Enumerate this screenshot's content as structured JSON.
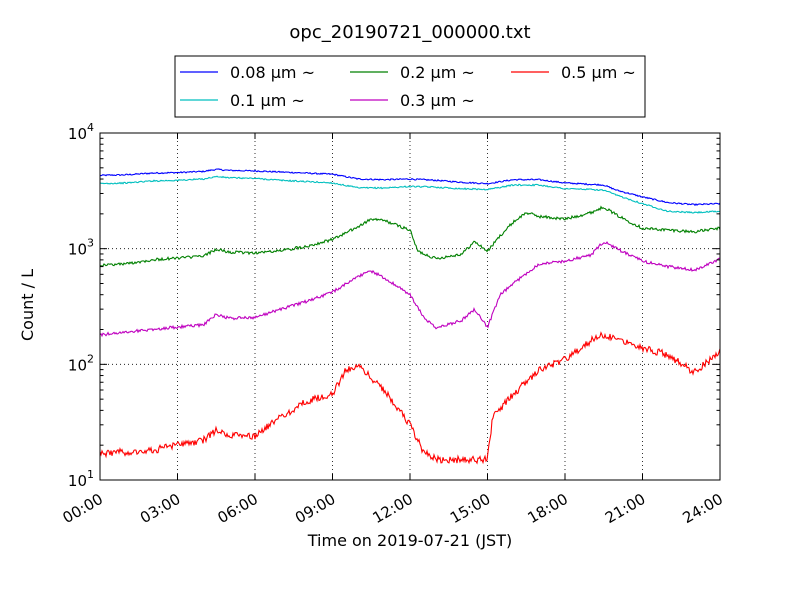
{
  "chart_data": {
    "type": "line",
    "title": "opc_20190721_000000.txt",
    "xlabel": "Time on 2019-07-21 (JST)",
    "ylabel": "Count / L",
    "x_unit": "hours",
    "xlim": [
      0,
      24
    ],
    "ylim": [
      10,
      10000
    ],
    "yscale": "log",
    "grid": true,
    "legend_position": "top-center, above plot",
    "x_ticks": [
      {
        "value": 0,
        "label": "00:00"
      },
      {
        "value": 3,
        "label": "03:00"
      },
      {
        "value": 6,
        "label": "06:00"
      },
      {
        "value": 9,
        "label": "09:00"
      },
      {
        "value": 12,
        "label": "12:00"
      },
      {
        "value": 15,
        "label": "15:00"
      },
      {
        "value": 18,
        "label": "18:00"
      },
      {
        "value": 21,
        "label": "21:00"
      },
      {
        "value": 24,
        "label": "24:00"
      }
    ],
    "y_ticks": [
      {
        "value": 10,
        "base": "10",
        "exp": "1"
      },
      {
        "value": 100,
        "base": "10",
        "exp": "2"
      },
      {
        "value": 1000,
        "base": "10",
        "exp": "3"
      },
      {
        "value": 10000,
        "base": "10",
        "exp": "4"
      }
    ],
    "series": [
      {
        "name": "0.08 μm ~",
        "color": "#0000ff",
        "points": [
          [
            0,
            4300
          ],
          [
            1,
            4350
          ],
          [
            2,
            4500
          ],
          [
            3,
            4550
          ],
          [
            4,
            4650
          ],
          [
            4.5,
            4850
          ],
          [
            5,
            4750
          ],
          [
            6,
            4700
          ],
          [
            7,
            4600
          ],
          [
            8,
            4500
          ],
          [
            9,
            4400
          ],
          [
            10,
            4000
          ],
          [
            11,
            3950
          ],
          [
            12,
            4000
          ],
          [
            13,
            3900
          ],
          [
            14,
            3750
          ],
          [
            15,
            3650
          ],
          [
            16,
            3950
          ],
          [
            17,
            3950
          ],
          [
            18,
            3700
          ],
          [
            19,
            3600
          ],
          [
            19.5,
            3550
          ],
          [
            20,
            3200
          ],
          [
            21,
            2800
          ],
          [
            22,
            2500
          ],
          [
            23,
            2400
          ],
          [
            24,
            2450
          ]
        ]
      },
      {
        "name": "0.1 μm ~",
        "color": "#00bfbf",
        "points": [
          [
            0,
            3650
          ],
          [
            1,
            3700
          ],
          [
            2,
            3850
          ],
          [
            3,
            3900
          ],
          [
            4,
            4000
          ],
          [
            4.5,
            4200
          ],
          [
            5,
            4100
          ],
          [
            6,
            4050
          ],
          [
            7,
            3900
          ],
          [
            8,
            3800
          ],
          [
            9,
            3700
          ],
          [
            10,
            3350
          ],
          [
            11,
            3350
          ],
          [
            12,
            3450
          ],
          [
            13,
            3400
          ],
          [
            14,
            3300
          ],
          [
            15,
            3250
          ],
          [
            16,
            3550
          ],
          [
            17,
            3550
          ],
          [
            18,
            3300
          ],
          [
            19,
            3250
          ],
          [
            19.5,
            3200
          ],
          [
            20,
            2900
          ],
          [
            21,
            2450
          ],
          [
            22,
            2100
          ],
          [
            23,
            2050
          ],
          [
            24,
            2100
          ]
        ]
      },
      {
        "name": "0.2 μm ~",
        "color": "#008000",
        "points": [
          [
            0,
            720
          ],
          [
            1,
            740
          ],
          [
            2,
            800
          ],
          [
            3,
            830
          ],
          [
            4,
            860
          ],
          [
            4.5,
            990
          ],
          [
            5,
            930
          ],
          [
            6,
            920
          ],
          [
            7,
            960
          ],
          [
            8,
            1050
          ],
          [
            9,
            1200
          ],
          [
            10,
            1550
          ],
          [
            10.5,
            1800
          ],
          [
            11,
            1750
          ],
          [
            12,
            1450
          ],
          [
            12.3,
            950
          ],
          [
            13,
            820
          ],
          [
            14,
            900
          ],
          [
            14.5,
            1150
          ],
          [
            15,
            950
          ],
          [
            15.5,
            1300
          ],
          [
            16,
            1700
          ],
          [
            16.5,
            2050
          ],
          [
            17,
            1900
          ],
          [
            18,
            1800
          ],
          [
            19,
            2050
          ],
          [
            19.5,
            2300
          ],
          [
            20,
            1950
          ],
          [
            21,
            1500
          ],
          [
            22,
            1450
          ],
          [
            23,
            1400
          ],
          [
            24,
            1500
          ]
        ]
      },
      {
        "name": "0.3 μm ~",
        "color": "#bf00bf",
        "points": [
          [
            0,
            180
          ],
          [
            1,
            190
          ],
          [
            2,
            200
          ],
          [
            3,
            210
          ],
          [
            4,
            220
          ],
          [
            4.5,
            270
          ],
          [
            5,
            250
          ],
          [
            6,
            255
          ],
          [
            7,
            300
          ],
          [
            8,
            350
          ],
          [
            9,
            420
          ],
          [
            10,
            580
          ],
          [
            10.5,
            640
          ],
          [
            11,
            560
          ],
          [
            12,
            400
          ],
          [
            12.5,
            260
          ],
          [
            13,
            205
          ],
          [
            14,
            240
          ],
          [
            14.5,
            300
          ],
          [
            15,
            210
          ],
          [
            15.5,
            400
          ],
          [
            16,
            500
          ],
          [
            17,
            740
          ],
          [
            18,
            780
          ],
          [
            19,
            880
          ],
          [
            19.5,
            1150
          ],
          [
            20,
            1000
          ],
          [
            21,
            780
          ],
          [
            22,
            700
          ],
          [
            23,
            650
          ],
          [
            24,
            820
          ]
        ]
      },
      {
        "name": "0.5 μm ~",
        "color": "#ff0000",
        "points": [
          [
            0,
            17
          ],
          [
            1,
            17.5
          ],
          [
            2,
            18
          ],
          [
            3,
            20
          ],
          [
            4,
            22
          ],
          [
            4.5,
            27
          ],
          [
            5,
            24
          ],
          [
            6,
            24
          ],
          [
            7,
            35
          ],
          [
            8,
            48
          ],
          [
            9,
            55
          ],
          [
            9.5,
            88
          ],
          [
            10,
            98
          ],
          [
            11,
            60
          ],
          [
            12,
            30
          ],
          [
            12.5,
            18
          ],
          [
            13,
            15
          ],
          [
            14,
            15
          ],
          [
            15,
            15
          ],
          [
            15.2,
            35
          ],
          [
            16,
            55
          ],
          [
            17,
            90
          ],
          [
            18,
            110
          ],
          [
            19,
            160
          ],
          [
            19.5,
            180
          ],
          [
            20,
            170
          ],
          [
            21,
            140
          ],
          [
            22,
            120
          ],
          [
            23,
            85
          ],
          [
            24,
            130
          ]
        ]
      }
    ]
  }
}
